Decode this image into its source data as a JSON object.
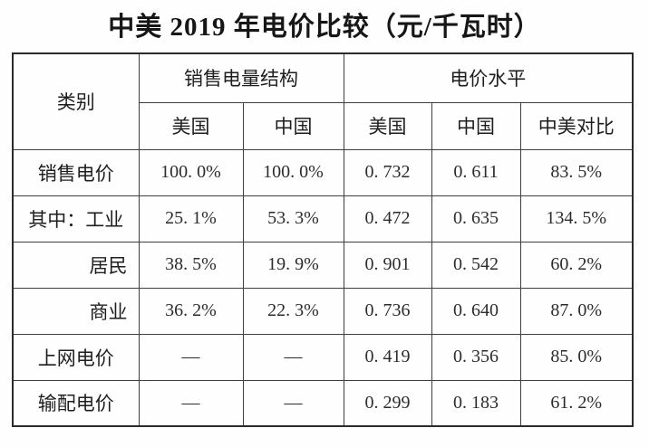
{
  "title": "中美 2019 年电价比较（元/千瓦时）",
  "table": {
    "header": {
      "category": "类别",
      "group_sales_structure": "销售电量结构",
      "group_price_level": "电价水平",
      "sub": [
        "美国",
        "中国",
        "美国",
        "中国",
        "中美对比"
      ]
    },
    "rows": [
      {
        "label": "销售电价",
        "cells": [
          "100. 0%",
          "100. 0%",
          "0. 732",
          "0. 611",
          "83. 5%"
        ]
      },
      {
        "label": "其中：工业",
        "cells": [
          "25. 1%",
          "53. 3%",
          "0. 472",
          "0. 635",
          "134. 5%"
        ]
      },
      {
        "label": "居民",
        "cells": [
          "38. 5%",
          "19. 9%",
          "0. 901",
          "0. 542",
          "60. 2%"
        ]
      },
      {
        "label": "商业",
        "cells": [
          "36. 2%",
          "22. 3%",
          "0. 736",
          "0. 640",
          "87. 0%"
        ]
      },
      {
        "label": "上网电价",
        "cells": [
          "––",
          "––",
          "0. 419",
          "0. 356",
          "85. 0%"
        ]
      },
      {
        "label": "输配电价",
        "cells": [
          "––",
          "––",
          "0. 299",
          "0. 183",
          "61. 2%"
        ]
      }
    ]
  }
}
